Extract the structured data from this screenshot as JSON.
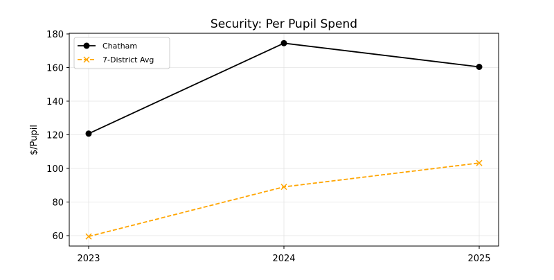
{
  "chart_data": {
    "type": "line",
    "title": "Security: Per Pupil Spend",
    "xlabel": "",
    "ylabel": "$/Pupil",
    "categories": [
      "2023",
      "2024",
      "2025"
    ],
    "ylim": [
      53.8,
      180.4
    ],
    "yticks": [
      60,
      80,
      100,
      120,
      140,
      160,
      180
    ],
    "grid": true,
    "legend_position": "top-left",
    "series": [
      {
        "name": "Chatham",
        "values": [
          120.7,
          174.5,
          160.4
        ],
        "color": "#000000",
        "marker": "circle",
        "linestyle": "solid"
      },
      {
        "name": "7-District Avg",
        "values": [
          59.5,
          89.0,
          103.2
        ],
        "color": "#ffa500",
        "marker": "x",
        "linestyle": "dashed"
      }
    ]
  }
}
